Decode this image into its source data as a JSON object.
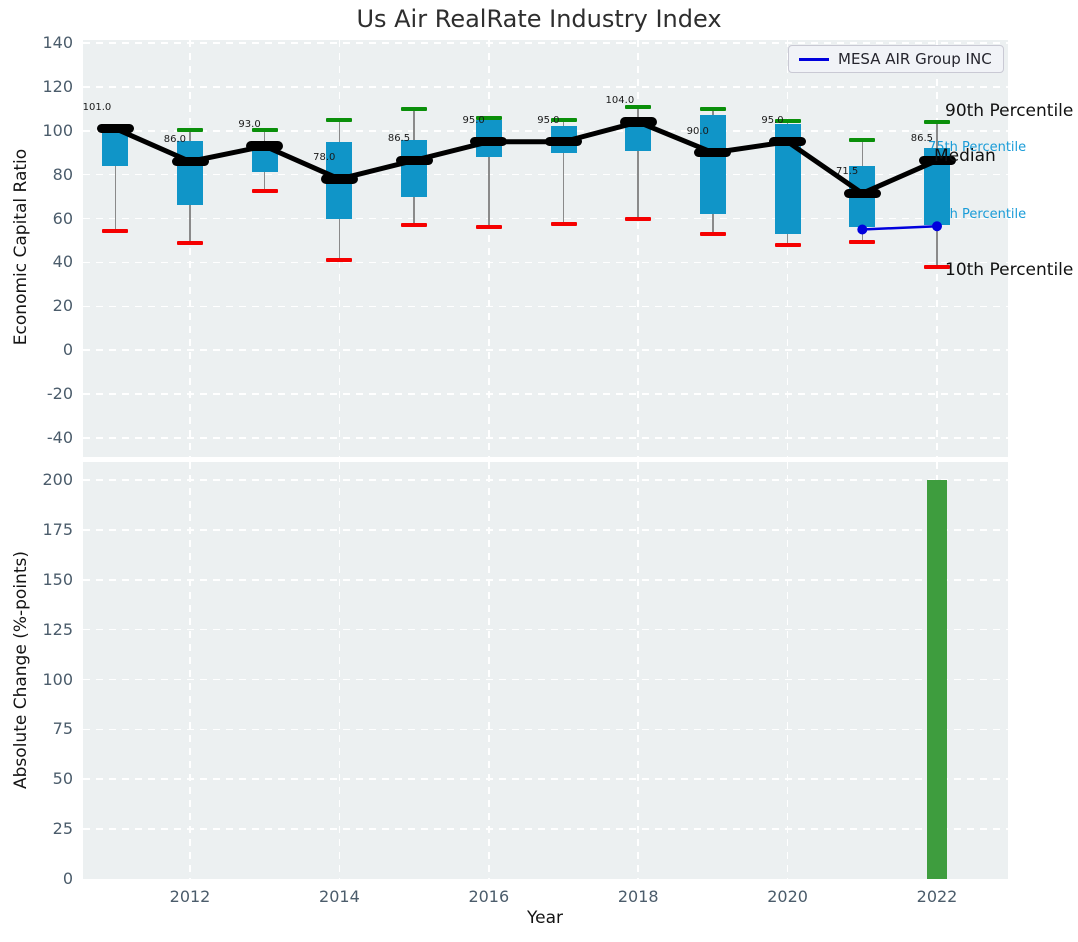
{
  "title": "Us Air RealRate Industry Index",
  "legend": {
    "label": "MESA AIR Group INC",
    "line_color": "#0000dd"
  },
  "annotations": {
    "p90": "90th Percentile",
    "p75": "75th Percentile",
    "median": "Median",
    "p25": "25th Percentile",
    "p10": "10th Percentile"
  },
  "colors": {
    "plot_bg": "#ecf0f1",
    "grid": "#ffffff",
    "box_fill": "#1095c8",
    "cap_green": "#0a8f0a",
    "cap_red": "#f50000",
    "median": "#000000",
    "whisker": "#8a8a8a",
    "mesa_line": "#0000dd",
    "bottom_bar": "#3e9d3e",
    "tick_label": "#4b5c6b",
    "cyan_label": "#1a9cd8"
  },
  "chart_data": [
    {
      "type": "line",
      "subtype": "percentile-candlestick",
      "title": "Us Air RealRate Industry Index",
      "ylabel": "Economic Capital Ratio",
      "ylim": [
        -49,
        141
      ],
      "yticks": [
        140,
        120,
        100,
        80,
        60,
        40,
        20,
        0,
        -20,
        -40
      ],
      "xticks": [
        2012,
        2014,
        2016,
        2018,
        2020,
        2022
      ],
      "grid": "white-dashed",
      "legend_position": "upper right",
      "years": [
        2011,
        2012,
        2013,
        2014,
        2015,
        2016,
        2017,
        2018,
        2019,
        2020,
        2021,
        2022
      ],
      "median": [
        101.0,
        86.0,
        93.0,
        78.0,
        86.5,
        95.0,
        95.0,
        104.0,
        90.0,
        95.0,
        71.5,
        86.5
      ],
      "median_labels": [
        "101.0",
        "86.0",
        "93.0",
        "78.0",
        "86.5",
        "95.0",
        "95.0",
        "104.0",
        "90.0",
        "95.0",
        "71.5",
        "86.5"
      ],
      "p90": [
        101.5,
        100.5,
        100.5,
        105,
        110,
        106,
        105,
        111,
        110,
        104.5,
        96,
        104
      ],
      "p75": [
        101,
        95.5,
        95,
        95,
        96,
        105,
        102,
        105,
        107,
        103,
        84,
        92
      ],
      "p25": [
        84,
        66,
        81,
        60,
        70,
        88,
        90,
        91,
        62,
        53,
        56,
        57
      ],
      "p10": [
        54.5,
        49,
        72.5,
        41,
        57,
        56,
        57.5,
        60,
        53,
        48,
        49.5,
        38
      ],
      "series": [
        {
          "name": "MESA AIR Group INC",
          "x": [
            2021,
            2022
          ],
          "values": [
            55,
            56.5
          ],
          "color": "#0000dd"
        }
      ]
    },
    {
      "type": "bar",
      "ylabel": "Absolute Change (%-points)",
      "xlabel": "Year",
      "ylim": [
        0,
        209
      ],
      "yticks": [
        200,
        175,
        150,
        125,
        100,
        75,
        50,
        25,
        0
      ],
      "xticks": [
        2012,
        2014,
        2016,
        2018,
        2020,
        2022
      ],
      "grid": "white-dashed",
      "bars": [
        {
          "year": 2022,
          "value": 200
        }
      ]
    }
  ]
}
